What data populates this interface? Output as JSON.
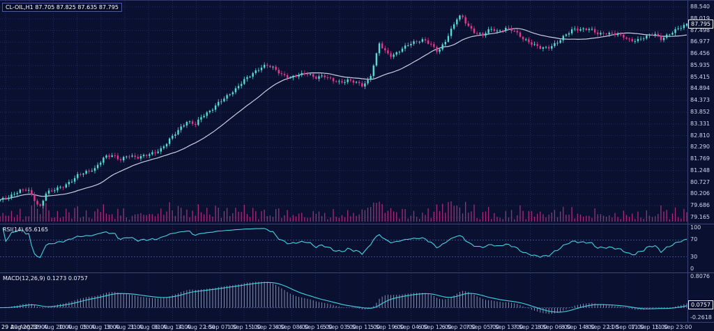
{
  "header": {
    "title_line": "CL-OIL,H1 87.705 87.825 87.635 87.795",
    "symbol": "CL-OIL",
    "timeframe": "H1"
  },
  "labels": {
    "rsi": "RSI(14) 65.6165",
    "macd": "MACD(12,26,9) 0.1273 0.0757"
  },
  "main": {
    "current_price_label": "87.795"
  },
  "colors": {
    "background": "#0a102f",
    "grid": "#212c58",
    "level": "#3c4a85",
    "bull": "#55dcd4",
    "bear": "#e8368f",
    "ma": "#c9cde4",
    "volume": "#a62c78",
    "rsi_line": "#45d4e6",
    "macd_hist": "#939dbd",
    "macd_signal": "#45d4e6",
    "axis_text": "#d2d9f2",
    "separator": "#3a4677",
    "tag_border": "#eef2ff"
  },
  "chart_data": {
    "type": "candlestick",
    "title": "CL-OIL,H1",
    "ohlc_current": {
      "open": 87.705,
      "high": 87.825,
      "low": 87.635,
      "close": 87.795
    },
    "bar_count": 240,
    "price_axis": {
      "min": 79.165,
      "max": 88.54,
      "tick_labels": [
        "88.540",
        "88.019",
        "87.498",
        "86.977",
        "86.456",
        "85.935",
        "85.415",
        "84.894",
        "84.373",
        "83.852",
        "83.331",
        "82.810",
        "82.290",
        "81.769",
        "81.248",
        "80.727",
        "80.206",
        "79.686",
        "79.165"
      ]
    },
    "time_axis_labels": [
      "29 Aug 2023",
      "29 Aug 12:00",
      "29 Aug 20:00",
      "30 Aug 05:00",
      "30 Aug 13:00",
      "30 Aug 21:00",
      "31 Aug 06:00",
      "31 Aug 14:00",
      "31 Aug 22:00",
      "1 Sep 07:00",
      "1 Sep 15:00",
      "1 Sep 23:00",
      "4 Sep 08:00",
      "4 Sep 16:00",
      "5 Sep 03:00",
      "5 Sep 11:00",
      "5 Sep 19:00",
      "6 Sep 04:00",
      "6 Sep 12:00",
      "6 Sep 20:00",
      "7 Sep 05:00",
      "7 Sep 13:00",
      "7 Sep 21:00",
      "8 Sep 06:00",
      "8 Sep 14:00",
      "8 Sep 22:00",
      "11 Sep 07:00",
      "11 Sep 15:00",
      "11 Sep 23:00"
    ],
    "close_anchors": [
      [
        0,
        79.95
      ],
      [
        14,
        80.05
      ],
      [
        28,
        80.35
      ],
      [
        40,
        80.45
      ],
      [
        50,
        79.95
      ],
      [
        57,
        79.6
      ],
      [
        66,
        80.25
      ],
      [
        80,
        80.4
      ],
      [
        92,
        80.55
      ],
      [
        104,
        80.85
      ],
      [
        112,
        81.1
      ],
      [
        124,
        81.2
      ],
      [
        136,
        81.3
      ],
      [
        150,
        81.85
      ],
      [
        162,
        81.95
      ],
      [
        172,
        81.75
      ],
      [
        184,
        81.95
      ],
      [
        196,
        81.8
      ],
      [
        208,
        81.9
      ],
      [
        222,
        82.05
      ],
      [
        232,
        82.25
      ],
      [
        244,
        82.7
      ],
      [
        256,
        83.05
      ],
      [
        268,
        83.4
      ],
      [
        280,
        83.3
      ],
      [
        290,
        83.7
      ],
      [
        302,
        83.95
      ],
      [
        314,
        84.3
      ],
      [
        326,
        84.55
      ],
      [
        338,
        84.85
      ],
      [
        350,
        85.3
      ],
      [
        362,
        85.6
      ],
      [
        374,
        85.85
      ],
      [
        382,
        85.95
      ],
      [
        392,
        85.8
      ],
      [
        404,
        85.5
      ],
      [
        416,
        85.4
      ],
      [
        428,
        85.55
      ],
      [
        440,
        85.6
      ],
      [
        452,
        85.35
      ],
      [
        464,
        85.45
      ],
      [
        476,
        85.3
      ],
      [
        488,
        85.2
      ],
      [
        500,
        85.3
      ],
      [
        512,
        85.15
      ],
      [
        520,
        85.0
      ],
      [
        530,
        85.3
      ],
      [
        538,
        86.2
      ],
      [
        544,
        86.95
      ],
      [
        552,
        86.6
      ],
      [
        562,
        86.35
      ],
      [
        574,
        86.6
      ],
      [
        586,
        86.85
      ],
      [
        598,
        87.0
      ],
      [
        608,
        87.1
      ],
      [
        618,
        86.9
      ],
      [
        628,
        86.55
      ],
      [
        638,
        86.95
      ],
      [
        648,
        87.55
      ],
      [
        656,
        88.05
      ],
      [
        662,
        88.15
      ],
      [
        670,
        87.75
      ],
      [
        680,
        87.45
      ],
      [
        692,
        87.3
      ],
      [
        704,
        87.55
      ],
      [
        714,
        87.4
      ],
      [
        726,
        87.6
      ],
      [
        738,
        87.5
      ],
      [
        750,
        87.15
      ],
      [
        762,
        86.9
      ],
      [
        774,
        86.7
      ],
      [
        786,
        86.7
      ],
      [
        798,
        86.95
      ],
      [
        810,
        87.3
      ],
      [
        822,
        87.55
      ],
      [
        834,
        87.5
      ],
      [
        846,
        87.55
      ],
      [
        858,
        87.35
      ],
      [
        870,
        87.4
      ],
      [
        882,
        87.35
      ],
      [
        894,
        87.2
      ],
      [
        904,
        87.0
      ],
      [
        914,
        87.05
      ],
      [
        926,
        87.25
      ],
      [
        938,
        87.4
      ],
      [
        948,
        87.1
      ],
      [
        960,
        87.3
      ],
      [
        972,
        87.55
      ],
      [
        985,
        87.795
      ]
    ],
    "overlays": [
      {
        "name": "moving-average",
        "period": 24
      }
    ],
    "indicators": {
      "rsi": {
        "name": "RSI",
        "period": 14,
        "value": 65.6165,
        "levels": [
          70,
          30
        ],
        "range": [
          0,
          100
        ],
        "axis_labels": [
          "100",
          "70",
          "30",
          "0"
        ]
      },
      "macd": {
        "name": "MACD",
        "fast": 12,
        "slow": 26,
        "signal": 9,
        "main_value": 0.1273,
        "signal_value": 0.0757,
        "range": [
          -0.2618,
          0.8076
        ],
        "axis_labels": [
          "0.8076",
          "-0.2618"
        ],
        "current_label": "0.0757"
      }
    }
  }
}
